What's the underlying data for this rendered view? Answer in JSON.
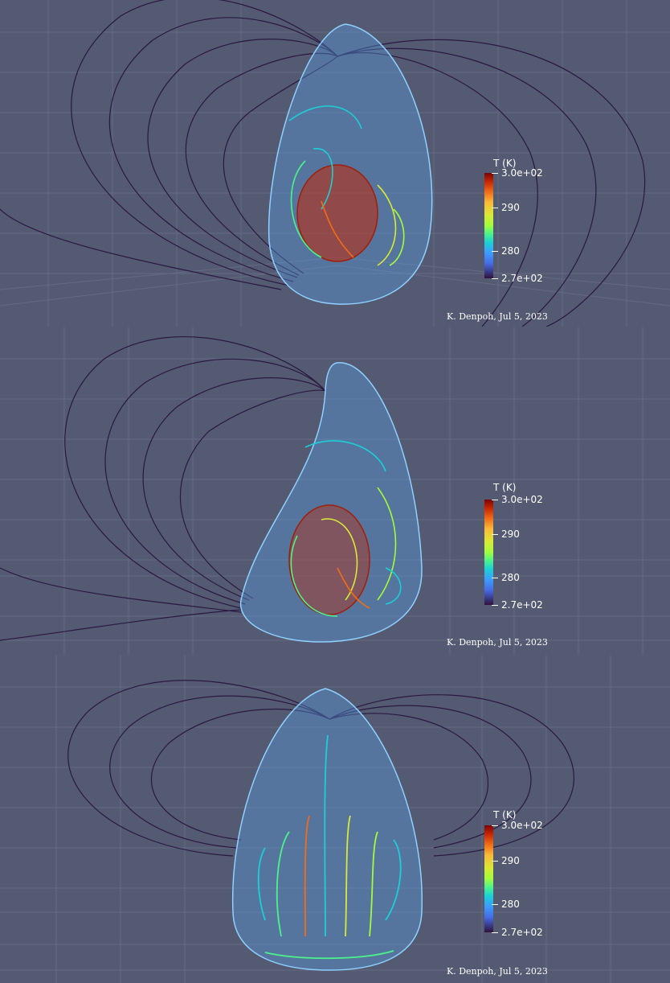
{
  "panels": [
    {
      "colorbar": {
        "title": "T (K)",
        "labels": [
          "3.0e+02",
          "290",
          "280",
          "2.7e+02"
        ]
      },
      "credit": "K. Denpoh, Jul 5, 2023"
    },
    {
      "colorbar": {
        "title": "T (K)",
        "labels": [
          "3.0e+02",
          "290",
          "280",
          "2.7e+02"
        ]
      },
      "credit": "K. Denpoh, Jul 5, 2023"
    },
    {
      "colorbar": {
        "title": "T (K)",
        "labels": [
          "3.0e+02",
          "290",
          "280",
          "2.7e+02"
        ]
      },
      "credit": "K. Denpoh, Jul 5, 2023"
    }
  ],
  "colors": {
    "background": "#545a72",
    "grid": "#6c7188",
    "field_lines": "#2a1840",
    "dome": "#5aa8f0",
    "hot": "#c42503",
    "warm": "#d8ea35",
    "cool": "#1bd0d5"
  }
}
